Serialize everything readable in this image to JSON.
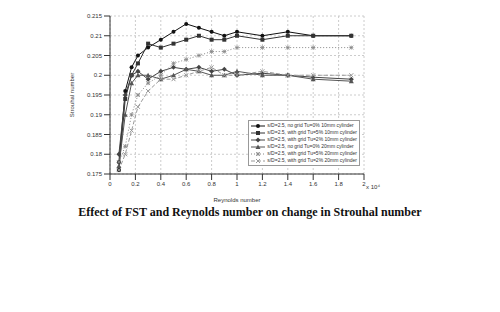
{
  "chart_data": {
    "type": "line",
    "title": "Effect of FST and Reynolds number on change in Strouhal number",
    "x_label": "Reynolds number",
    "y_label": "Strouhal number",
    "annotations": [
      "x 10⁴"
    ],
    "x": [
      0.07,
      0.12,
      0.17,
      0.22,
      0.3,
      0.4,
      0.5,
      0.6,
      0.7,
      0.8,
      0.9,
      1.0,
      1.2,
      1.4,
      1.6,
      1.9
    ],
    "xlim": [
      0,
      2
    ],
    "xticks": [
      0,
      0.2,
      0.4,
      0.6,
      0.8,
      1,
      1.2,
      1.4,
      1.6,
      1.8,
      2
    ],
    "ylim": [
      0.175,
      0.215
    ],
    "yticks": [
      0.175,
      0.18,
      0.185,
      0.19,
      0.195,
      0.2,
      0.205,
      0.21,
      0.215
    ],
    "grid": true,
    "legend": "lower right",
    "series": [
      {
        "name": "s/D=2.5, no grid Tu=0% 10mm cylinder",
        "color": "#111111",
        "marker": "circle",
        "line_style": "solid",
        "values": [
          0.178,
          0.196,
          0.202,
          0.205,
          0.207,
          0.209,
          0.211,
          0.213,
          0.212,
          0.211,
          0.21,
          0.211,
          0.21,
          0.211,
          0.21,
          0.21
        ]
      },
      {
        "name": "s/D=2.5, with grid Tu=5% 10mm cylinder",
        "color": "#333333",
        "marker": "square",
        "line_style": "solid",
        "values": [
          0.176,
          0.194,
          0.2,
          0.203,
          0.208,
          0.207,
          0.208,
          0.209,
          0.21,
          0.209,
          0.209,
          0.21,
          0.209,
          0.21,
          0.21,
          0.21
        ]
      },
      {
        "name": "s/D=2.5, with grid Tu=2% 10mm cylinder",
        "color": "#444444",
        "marker": "diamond",
        "line_style": "solid",
        "values": [
          0.18,
          0.195,
          0.2,
          0.201,
          0.199,
          0.201,
          0.202,
          0.2015,
          0.202,
          0.201,
          0.2015,
          0.2,
          0.2005,
          0.2,
          0.1995,
          0.199
        ]
      },
      {
        "name": "s/D=2.5, no grid Tu=0% 20mm cylinder",
        "color": "#555555",
        "marker": "triangle",
        "line_style": "solid",
        "values": [
          0.177,
          0.19,
          0.198,
          0.2,
          0.2,
          0.199,
          0.2,
          0.2015,
          0.201,
          0.2,
          0.2,
          0.201,
          0.2,
          0.2,
          0.199,
          0.1985
        ]
      },
      {
        "name": "s/D=2.5, with grid Tu=5% 20mm cylinder",
        "color": "#888888",
        "marker": "star",
        "line_style": "dotted",
        "values": [
          0.178,
          0.182,
          0.19,
          0.195,
          0.198,
          0.2,
          0.203,
          0.204,
          0.205,
          0.206,
          0.206,
          0.207,
          0.207,
          0.207,
          0.207,
          0.207
        ]
      },
      {
        "name": "s/D=2.5, with grid Tu=2% 20mm cylinder",
        "color": "#999999",
        "marker": "cross",
        "line_style": "dashed",
        "values": [
          0.176,
          0.18,
          0.186,
          0.192,
          0.196,
          0.199,
          0.199,
          0.2,
          0.201,
          0.202,
          0.2,
          0.2,
          0.201,
          0.2,
          0.2,
          0.2
        ]
      }
    ]
  }
}
